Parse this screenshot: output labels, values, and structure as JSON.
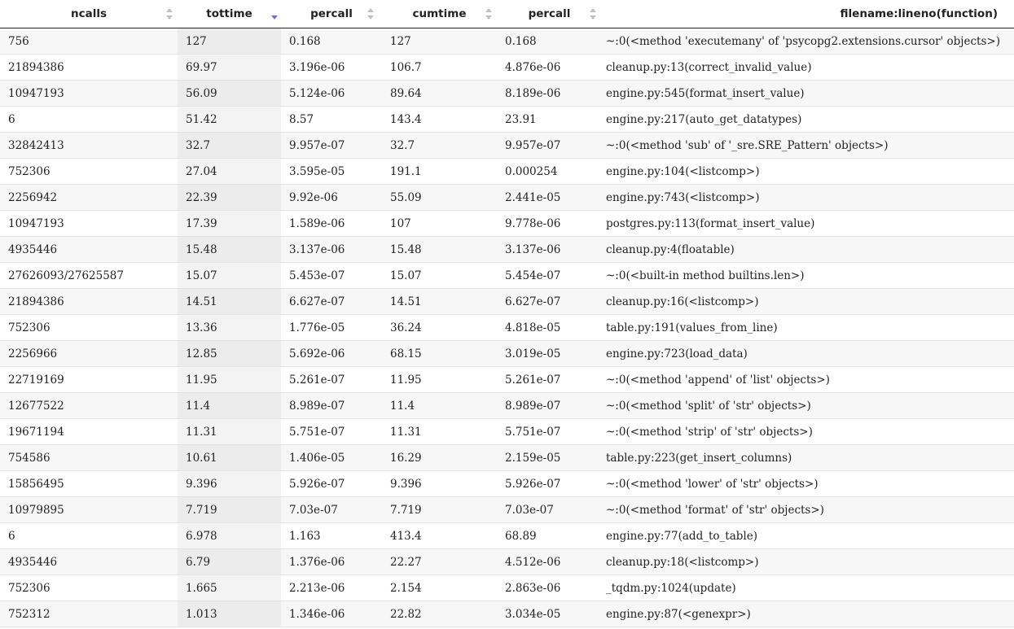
{
  "table": {
    "headers": {
      "ncalls": "ncalls",
      "tottime": "tottime",
      "percall_1": "percall",
      "cumtime": "cumtime",
      "percall_2": "percall",
      "function": "filename:lineno(function)"
    },
    "sort": {
      "column": "tottime",
      "direction": "descending"
    },
    "colors": {
      "sort_inactive": "#c0c0c0",
      "sort_active": "#7272c8"
    },
    "rows": [
      {
        "ncalls": "756",
        "tottime": "127",
        "percall_1": "0.168",
        "cumtime": "127",
        "percall_2": "0.168",
        "function": "~:0(<method 'executemany' of 'psycopg2.extensions.cursor' objects>)"
      },
      {
        "ncalls": "21894386",
        "tottime": "69.97",
        "percall_1": "3.196e-06",
        "cumtime": "106.7",
        "percall_2": "4.876e-06",
        "function": "cleanup.py:13(correct_invalid_value)"
      },
      {
        "ncalls": "10947193",
        "tottime": "56.09",
        "percall_1": "5.124e-06",
        "cumtime": "89.64",
        "percall_2": "8.189e-06",
        "function": "engine.py:545(format_insert_value)"
      },
      {
        "ncalls": "6",
        "tottime": "51.42",
        "percall_1": "8.57",
        "cumtime": "143.4",
        "percall_2": "23.91",
        "function": "engine.py:217(auto_get_datatypes)"
      },
      {
        "ncalls": "32842413",
        "tottime": "32.7",
        "percall_1": "9.957e-07",
        "cumtime": "32.7",
        "percall_2": "9.957e-07",
        "function": "~:0(<method 'sub' of '_sre.SRE_Pattern' objects>)"
      },
      {
        "ncalls": "752306",
        "tottime": "27.04",
        "percall_1": "3.595e-05",
        "cumtime": "191.1",
        "percall_2": "0.000254",
        "function": "engine.py:104(<listcomp>)"
      },
      {
        "ncalls": "2256942",
        "tottime": "22.39",
        "percall_1": "9.92e-06",
        "cumtime": "55.09",
        "percall_2": "2.441e-05",
        "function": "engine.py:743(<listcomp>)"
      },
      {
        "ncalls": "10947193",
        "tottime": "17.39",
        "percall_1": "1.589e-06",
        "cumtime": "107",
        "percall_2": "9.778e-06",
        "function": "postgres.py:113(format_insert_value)"
      },
      {
        "ncalls": "4935446",
        "tottime": "15.48",
        "percall_1": "3.137e-06",
        "cumtime": "15.48",
        "percall_2": "3.137e-06",
        "function": "cleanup.py:4(floatable)"
      },
      {
        "ncalls": "27626093/27625587",
        "tottime": "15.07",
        "percall_1": "5.453e-07",
        "cumtime": "15.07",
        "percall_2": "5.454e-07",
        "function": "~:0(<built-in method builtins.len>)"
      },
      {
        "ncalls": "21894386",
        "tottime": "14.51",
        "percall_1": "6.627e-07",
        "cumtime": "14.51",
        "percall_2": "6.627e-07",
        "function": "cleanup.py:16(<listcomp>)"
      },
      {
        "ncalls": "752306",
        "tottime": "13.36",
        "percall_1": "1.776e-05",
        "cumtime": "36.24",
        "percall_2": "4.818e-05",
        "function": "table.py:191(values_from_line)"
      },
      {
        "ncalls": "2256966",
        "tottime": "12.85",
        "percall_1": "5.692e-06",
        "cumtime": "68.15",
        "percall_2": "3.019e-05",
        "function": "engine.py:723(load_data)"
      },
      {
        "ncalls": "22719169",
        "tottime": "11.95",
        "percall_1": "5.261e-07",
        "cumtime": "11.95",
        "percall_2": "5.261e-07",
        "function": "~:0(<method 'append' of 'list' objects>)"
      },
      {
        "ncalls": "12677522",
        "tottime": "11.4",
        "percall_1": "8.989e-07",
        "cumtime": "11.4",
        "percall_2": "8.989e-07",
        "function": "~:0(<method 'split' of 'str' objects>)"
      },
      {
        "ncalls": "19671194",
        "tottime": "11.31",
        "percall_1": "5.751e-07",
        "cumtime": "11.31",
        "percall_2": "5.751e-07",
        "function": "~:0(<method 'strip' of 'str' objects>)"
      },
      {
        "ncalls": "754586",
        "tottime": "10.61",
        "percall_1": "1.406e-05",
        "cumtime": "16.29",
        "percall_2": "2.159e-05",
        "function": "table.py:223(get_insert_columns)"
      },
      {
        "ncalls": "15856495",
        "tottime": "9.396",
        "percall_1": "5.926e-07",
        "cumtime": "9.396",
        "percall_2": "5.926e-07",
        "function": "~:0(<method 'lower' of 'str' objects>)"
      },
      {
        "ncalls": "10979895",
        "tottime": "7.719",
        "percall_1": "7.03e-07",
        "cumtime": "7.719",
        "percall_2": "7.03e-07",
        "function": "~:0(<method 'format' of 'str' objects>)"
      },
      {
        "ncalls": "6",
        "tottime": "6.978",
        "percall_1": "1.163",
        "cumtime": "413.4",
        "percall_2": "68.89",
        "function": "engine.py:77(add_to_table)"
      },
      {
        "ncalls": "4935446",
        "tottime": "6.79",
        "percall_1": "1.376e-06",
        "cumtime": "22.27",
        "percall_2": "4.512e-06",
        "function": "cleanup.py:18(<listcomp>)"
      },
      {
        "ncalls": "752306",
        "tottime": "1.665",
        "percall_1": "2.213e-06",
        "cumtime": "2.154",
        "percall_2": "2.863e-06",
        "function": "_tqdm.py:1024(update)"
      },
      {
        "ncalls": "752312",
        "tottime": "1.013",
        "percall_1": "1.346e-06",
        "cumtime": "22.82",
        "percall_2": "3.034e-05",
        "function": "engine.py:87(<genexpr>)"
      }
    ]
  }
}
